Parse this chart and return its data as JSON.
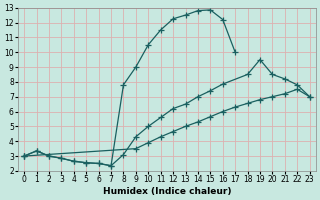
{
  "bg_color": "#c8e8e0",
  "grid_color": "#ddb0b0",
  "line_color": "#1a6060",
  "line_width": 0.9,
  "marker": "+",
  "marker_size": 4,
  "marker_edge_width": 0.9,
  "xlabel": "Humidex (Indice chaleur)",
  "xlabel_fontsize": 6.5,
  "tick_fontsize": 5.5,
  "xlim": [
    -0.5,
    23.5
  ],
  "ylim": [
    2,
    13
  ],
  "xticks": [
    0,
    1,
    2,
    3,
    4,
    5,
    6,
    7,
    8,
    9,
    10,
    11,
    12,
    13,
    14,
    15,
    16,
    17,
    18,
    19,
    20,
    21,
    22,
    23
  ],
  "yticks": [
    2,
    3,
    4,
    5,
    6,
    7,
    8,
    9,
    10,
    11,
    12,
    13
  ],
  "line1_x": [
    0,
    1,
    2,
    3,
    4,
    5,
    6,
    7,
    8,
    9,
    10,
    11,
    12,
    13,
    14,
    15,
    16,
    17
  ],
  "line1_y": [
    3.0,
    3.35,
    3.0,
    2.85,
    2.65,
    2.55,
    2.5,
    2.35,
    7.8,
    9.0,
    10.5,
    11.5,
    12.25,
    12.5,
    12.8,
    12.85,
    12.2,
    10.0
  ],
  "line2_x": [
    0,
    1,
    2,
    3,
    4,
    5,
    6,
    7,
    8,
    9,
    10,
    11,
    12,
    13,
    14,
    15,
    16,
    18,
    19,
    20,
    21,
    22,
    23
  ],
  "line2_y": [
    3.0,
    3.35,
    3.0,
    2.85,
    2.65,
    2.55,
    2.5,
    2.35,
    3.1,
    4.3,
    5.0,
    5.6,
    6.2,
    6.5,
    7.0,
    7.4,
    7.85,
    8.5,
    9.5,
    8.5,
    8.2,
    7.8,
    7.0
  ],
  "line3_x": [
    0,
    9,
    10,
    11,
    12,
    13,
    14,
    15,
    16,
    17,
    18,
    19,
    20,
    21,
    22,
    23
  ],
  "line3_y": [
    3.0,
    3.5,
    3.9,
    4.3,
    4.65,
    5.0,
    5.3,
    5.65,
    6.0,
    6.3,
    6.55,
    6.8,
    7.0,
    7.2,
    7.5,
    7.0
  ]
}
